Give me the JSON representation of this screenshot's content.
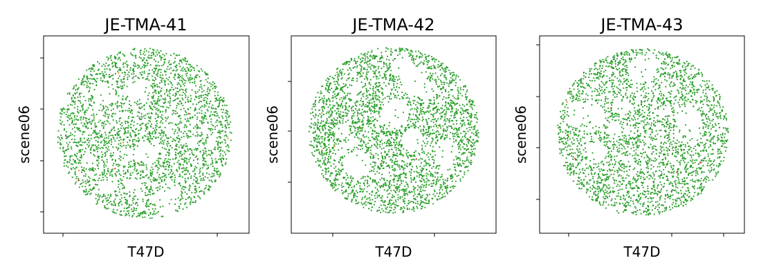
{
  "chart_data": [
    {
      "type": "scatter",
      "title": "JE-TMA-41",
      "xlabel": "T47D",
      "ylabel": "scene06",
      "point_count_estimate": 2800,
      "colors": {
        "main": "#2ca02c",
        "minor": [
          "#ff7f0e",
          "#9467bd",
          "#d62728"
        ]
      },
      "tick_labels_visible": false,
      "grid": false,
      "legend": "none"
    },
    {
      "type": "scatter",
      "title": "JE-TMA-42",
      "xlabel": "T47D",
      "ylabel": "scene06",
      "point_count_estimate": 3000,
      "colors": {
        "main": "#2ca02c",
        "minor": [
          "#ff7f0e",
          "#9467bd",
          "#d62728"
        ]
      },
      "tick_labels_visible": false,
      "grid": false,
      "legend": "none"
    },
    {
      "type": "scatter",
      "title": "JE-TMA-43",
      "xlabel": "T47D",
      "ylabel": "scene06",
      "point_count_estimate": 2700,
      "colors": {
        "main": "#2ca02c",
        "minor": [
          "#ff7f0e",
          "#9467bd",
          "#d62728"
        ]
      },
      "tick_labels_visible": false,
      "grid": false,
      "legend": "none"
    }
  ]
}
